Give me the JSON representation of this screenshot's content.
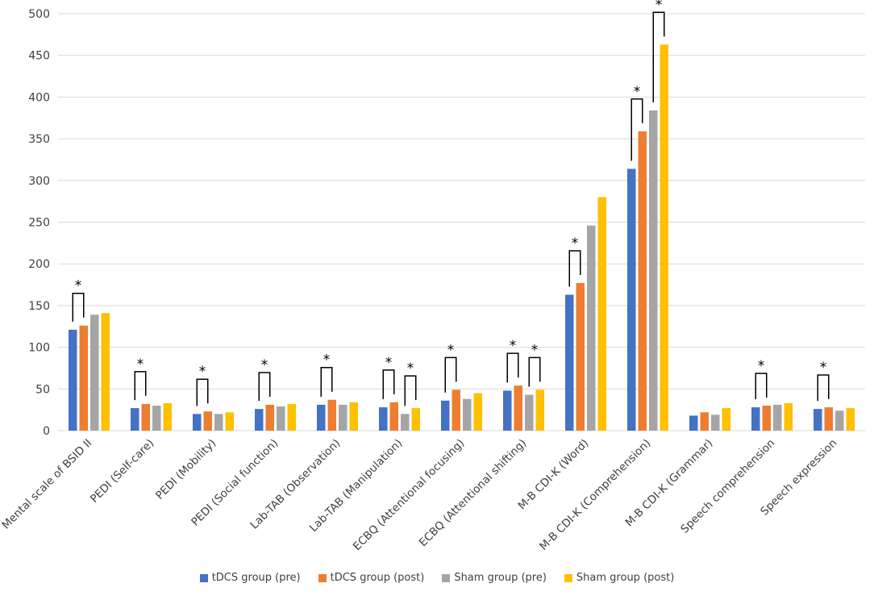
{
  "chart_data": {
    "type": "bar",
    "title": "",
    "xlabel": "",
    "ylabel": "",
    "ylim": [
      0,
      500
    ],
    "yticks": [
      0,
      50,
      100,
      150,
      200,
      250,
      300,
      350,
      400,
      450,
      500
    ],
    "grid": "horizontal",
    "legend_position": "bottom",
    "categories": [
      "Mental scale of BSID II",
      "PEDI (Self-care)",
      "PEDI (Mobility)",
      "PEDI (Social function)",
      "Lab-TAB (Observation)",
      "Lab-TAB (Manipulation)",
      "ECBQ (Attentional focusing)",
      "ECBQ (Attentional shifting)",
      "M-B CDI-K (Word)",
      "M-B CDI-K (Comprehension)",
      "M-B CDI-K (Grammar)",
      "Speech comprehension",
      "Speech expression"
    ],
    "series": [
      {
        "name": "tDCS group (pre)",
        "color": "#4472C4",
        "values": [
          121,
          27,
          20,
          26,
          31,
          28,
          36,
          48,
          163,
          314,
          18,
          28,
          26
        ]
      },
      {
        "name": "tDCS group (post)",
        "color": "#ED7D31",
        "values": [
          126,
          32,
          23,
          31,
          37,
          34,
          49,
          54,
          177,
          359,
          22,
          30,
          28
        ]
      },
      {
        "name": "Sham group (pre)",
        "color": "#A5A5A5",
        "values": [
          139,
          30,
          20,
          29,
          31,
          20,
          38,
          43,
          246,
          384,
          19,
          31,
          24
        ]
      },
      {
        "name": "Sham group (post)",
        "color": "#FFC000",
        "values": [
          141,
          33,
          22,
          32,
          34,
          27,
          45,
          49,
          280,
          463,
          27,
          33,
          27
        ]
      }
    ],
    "significance": [
      {
        "category": 0,
        "between": [
          "tDCS group (pre)",
          "tDCS group (post)"
        ],
        "label": "*"
      },
      {
        "category": 1,
        "between": [
          "tDCS group (pre)",
          "tDCS group (post)"
        ],
        "label": "*"
      },
      {
        "category": 2,
        "between": [
          "tDCS group (pre)",
          "tDCS group (post)"
        ],
        "label": "*"
      },
      {
        "category": 3,
        "between": [
          "tDCS group (pre)",
          "tDCS group (post)"
        ],
        "label": "*"
      },
      {
        "category": 4,
        "between": [
          "tDCS group (pre)",
          "tDCS group (post)"
        ],
        "label": "*"
      },
      {
        "category": 5,
        "between": [
          "tDCS group (pre)",
          "tDCS group (post)"
        ],
        "label": "*"
      },
      {
        "category": 5,
        "between": [
          "Sham group (pre)",
          "Sham group (post)"
        ],
        "label": "*"
      },
      {
        "category": 6,
        "between": [
          "tDCS group (pre)",
          "tDCS group (post)"
        ],
        "label": "*"
      },
      {
        "category": 7,
        "between": [
          "tDCS group (pre)",
          "tDCS group (post)"
        ],
        "label": "*"
      },
      {
        "category": 7,
        "between": [
          "Sham group (pre)",
          "Sham group (post)"
        ],
        "label": "*"
      },
      {
        "category": 8,
        "between": [
          "tDCS group (pre)",
          "tDCS group (post)"
        ],
        "label": "*"
      },
      {
        "category": 9,
        "between": [
          "tDCS group (pre)",
          "tDCS group (post)"
        ],
        "label": "*"
      },
      {
        "category": 9,
        "between": [
          "Sham group (pre)",
          "Sham group (post)"
        ],
        "label": "*"
      },
      {
        "category": 11,
        "between": [
          "tDCS group (pre)",
          "tDCS group (post)"
        ],
        "label": "*"
      },
      {
        "category": 12,
        "between": [
          "tDCS group (pre)",
          "tDCS group (post)"
        ],
        "label": "*"
      }
    ]
  }
}
